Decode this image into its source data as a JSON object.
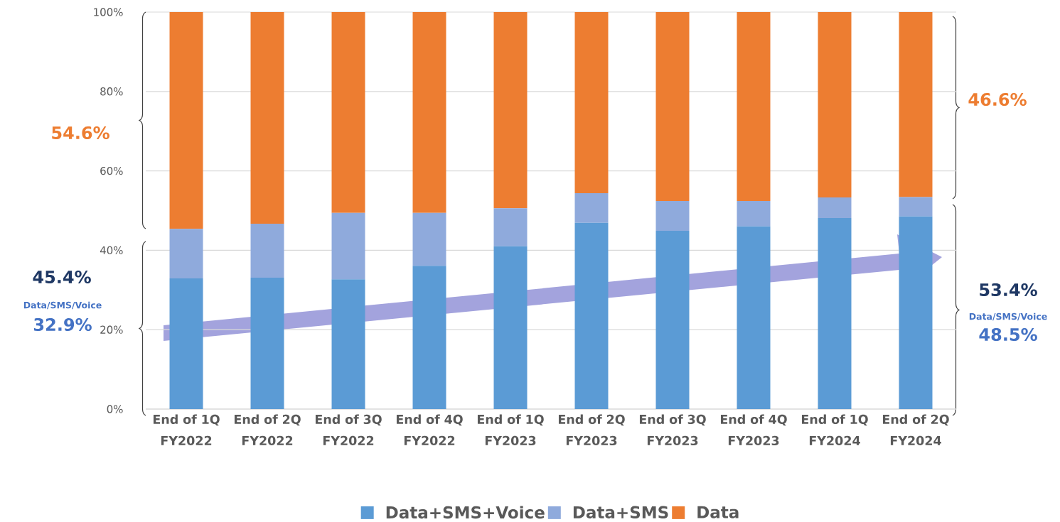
{
  "chart_data": {
    "type": "bar",
    "stacked": true,
    "categories": [
      "End of 1Q FY2022",
      "End of 2Q FY2022",
      "End of 3Q FY2022",
      "End of 4Q FY2022",
      "End of 1Q FY2023",
      "End of 2Q FY2023",
      "End of 3Q FY2023",
      "End of 4Q FY2023",
      "End of 1Q FY2024",
      "End of 2Q FY2024"
    ],
    "series": [
      {
        "name": "Data+SMS+Voice",
        "color": "#5b9bd5",
        "values": [
          32.9,
          33.1,
          32.7,
          36.1,
          41.0,
          46.9,
          44.9,
          46.0,
          48.1,
          48.5
        ]
      },
      {
        "name": "Data+SMS",
        "color": "#8faadc",
        "values": [
          12.5,
          13.6,
          16.7,
          13.3,
          9.6,
          7.5,
          7.5,
          6.4,
          5.2,
          4.9
        ]
      },
      {
        "name": "Data",
        "color": "#ed7d31",
        "values": [
          54.6,
          53.3,
          50.6,
          50.6,
          49.4,
          45.6,
          47.6,
          47.6,
          46.7,
          46.6
        ]
      }
    ],
    "ylim": [
      0,
      100
    ],
    "yticks": [
      {
        "value": 0,
        "label": "0%"
      },
      {
        "value": 20,
        "label": "20%"
      },
      {
        "value": 40,
        "label": "40%"
      },
      {
        "value": 60,
        "label": "60%"
      },
      {
        "value": 80,
        "label": "80%"
      },
      {
        "value": 100,
        "label": "100%"
      }
    ],
    "grid": "y",
    "legend": "bottom",
    "annotations": [
      "54.6%",
      "45.4%",
      "Data/SMS/Voice",
      "32.9%",
      "46.6%",
      "53.4%",
      "Data/SMS/Voice",
      "48.5%"
    ]
  }
}
